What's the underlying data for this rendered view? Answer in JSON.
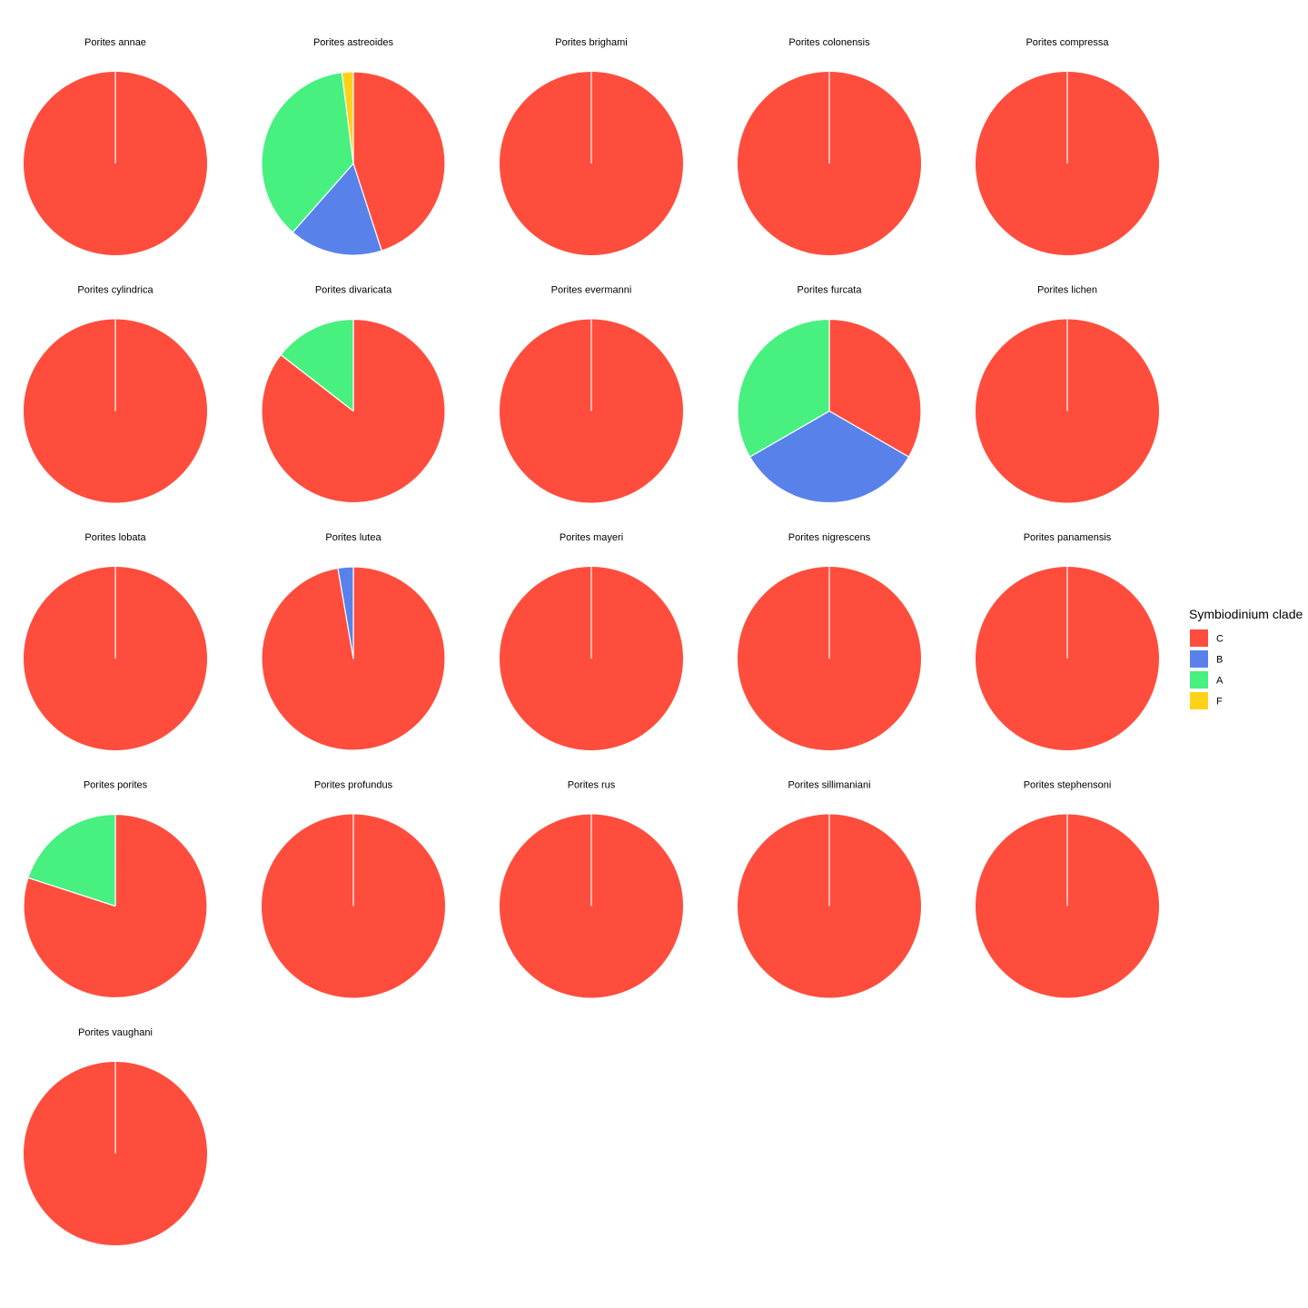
{
  "chart_data": {
    "type": "pie",
    "legend": {
      "title": "Symbiodinium clade",
      "placement": "right",
      "entries": [
        {
          "label": "C",
          "color": "#FF4D3D"
        },
        {
          "label": "B",
          "color": "#5882EA"
        },
        {
          "label": "A",
          "color": "#47F07F"
        },
        {
          "label": "F",
          "color": "#FFD21A"
        }
      ]
    },
    "clade_order": [
      "C",
      "B",
      "A",
      "F"
    ],
    "facets": [
      {
        "title": "Porites annae",
        "slices": {
          "C": 1.0
        }
      },
      {
        "title": "Porites astreoides",
        "slices": {
          "C": 0.45,
          "B": 0.165,
          "A": 0.365,
          "F": 0.02
        }
      },
      {
        "title": "Porites brighami",
        "slices": {
          "C": 1.0
        }
      },
      {
        "title": "Porites colonensis",
        "slices": {
          "C": 1.0
        }
      },
      {
        "title": "Porites compressa",
        "slices": {
          "C": 1.0
        }
      },
      {
        "title": "Porites cylindrica",
        "slices": {
          "C": 1.0
        }
      },
      {
        "title": "Porites divaricata",
        "slices": {
          "C": 0.855,
          "A": 0.145
        }
      },
      {
        "title": "Porites evermanni",
        "slices": {
          "C": 1.0
        }
      },
      {
        "title": "Porites furcata",
        "slices": {
          "C": 0.3333,
          "B": 0.3333,
          "A": 0.3334
        }
      },
      {
        "title": "Porites lichen",
        "slices": {
          "C": 1.0
        }
      },
      {
        "title": "Porites lobata",
        "slices": {
          "C": 1.0
        }
      },
      {
        "title": "Porites lutea",
        "slices": {
          "C": 0.973,
          "B": 0.027
        }
      },
      {
        "title": "Porites mayeri",
        "slices": {
          "C": 1.0
        }
      },
      {
        "title": "Porites nigrescens",
        "slices": {
          "C": 1.0
        }
      },
      {
        "title": "Porites panamensis",
        "slices": {
          "C": 1.0
        }
      },
      {
        "title": "Porites porites",
        "slices": {
          "C": 0.8,
          "A": 0.2
        }
      },
      {
        "title": "Porites profundus",
        "slices": {
          "C": 1.0
        }
      },
      {
        "title": "Porites rus",
        "slices": {
          "C": 1.0
        }
      },
      {
        "title": "Porites sillimaniani",
        "slices": {
          "C": 1.0
        }
      },
      {
        "title": "Porites stephensoni",
        "slices": {
          "C": 1.0
        }
      },
      {
        "title": "Porites vaughani",
        "slices": {
          "C": 1.0
        }
      }
    ]
  }
}
